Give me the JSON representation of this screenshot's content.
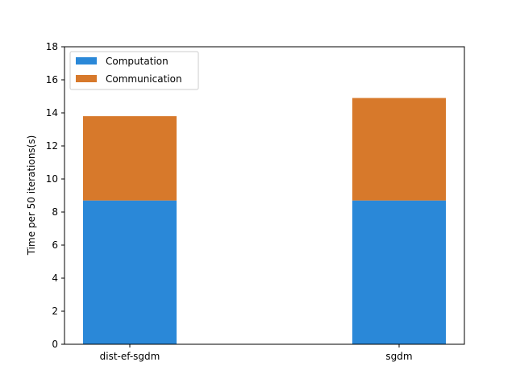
{
  "chart_data": {
    "type": "bar",
    "stacked": true,
    "categories": [
      "dist-ef-sgdm",
      "sgdm"
    ],
    "series": [
      {
        "name": "Computation",
        "values": [
          8.7,
          8.7
        ],
        "color": "#2a88d8"
      },
      {
        "name": "Communication",
        "values": [
          5.1,
          6.2
        ],
        "color": "#d7792b"
      }
    ],
    "title": "",
    "xlabel": "",
    "ylabel": "Time per 50 iterations(s)",
    "ylim": [
      0,
      18
    ],
    "yticks": [
      "0",
      "2",
      "4",
      "6",
      "8",
      "10",
      "12",
      "14",
      "16",
      "18"
    ],
    "grid": false,
    "legend": {
      "placement": "top-left"
    }
  }
}
